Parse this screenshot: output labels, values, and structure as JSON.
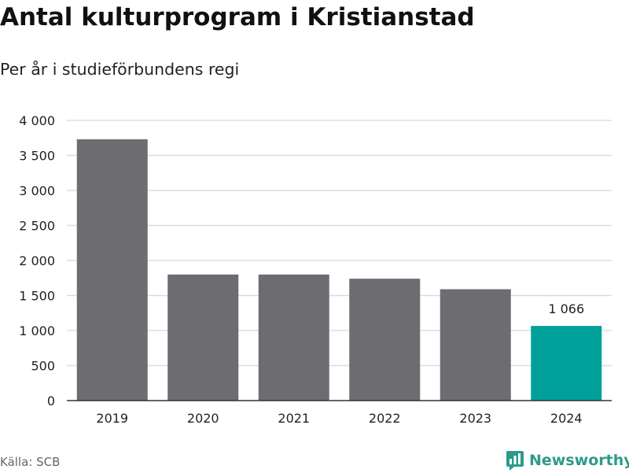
{
  "title": "Antal kulturprogram i Kristianstad",
  "subtitle": "Per år i studieförbundens regi",
  "source": "Källa: SCB",
  "brand": {
    "name": "Newsworthy",
    "icon": "newsworthy-logo-icon",
    "color": "#2d9b8b"
  },
  "colors": {
    "bar": "#6d6c71",
    "highlight": "#00a09a",
    "grid": "#dddddd",
    "axis": "#333333"
  },
  "chart_data": {
    "type": "bar",
    "categories": [
      "2019",
      "2020",
      "2021",
      "2022",
      "2023",
      "2024"
    ],
    "values": [
      3730,
      1800,
      1800,
      1740,
      1590,
      1066
    ],
    "highlight_index": 5,
    "data_labels": [
      {
        "index": 5,
        "text": "1 066"
      }
    ],
    "ylim": [
      0,
      4000
    ],
    "yticks": [
      0,
      500,
      1000,
      1500,
      2000,
      2500,
      3000,
      3500,
      4000
    ],
    "ytick_labels": [
      "0",
      "500",
      "1 000",
      "1 500",
      "2 000",
      "2 500",
      "3 000",
      "3 500",
      "4 000"
    ],
    "grid": true,
    "legend": "none",
    "title": "Antal kulturprogram i Kristianstad",
    "subtitle": "Per år i studieförbundens regi",
    "xlabel": "",
    "ylabel": ""
  }
}
